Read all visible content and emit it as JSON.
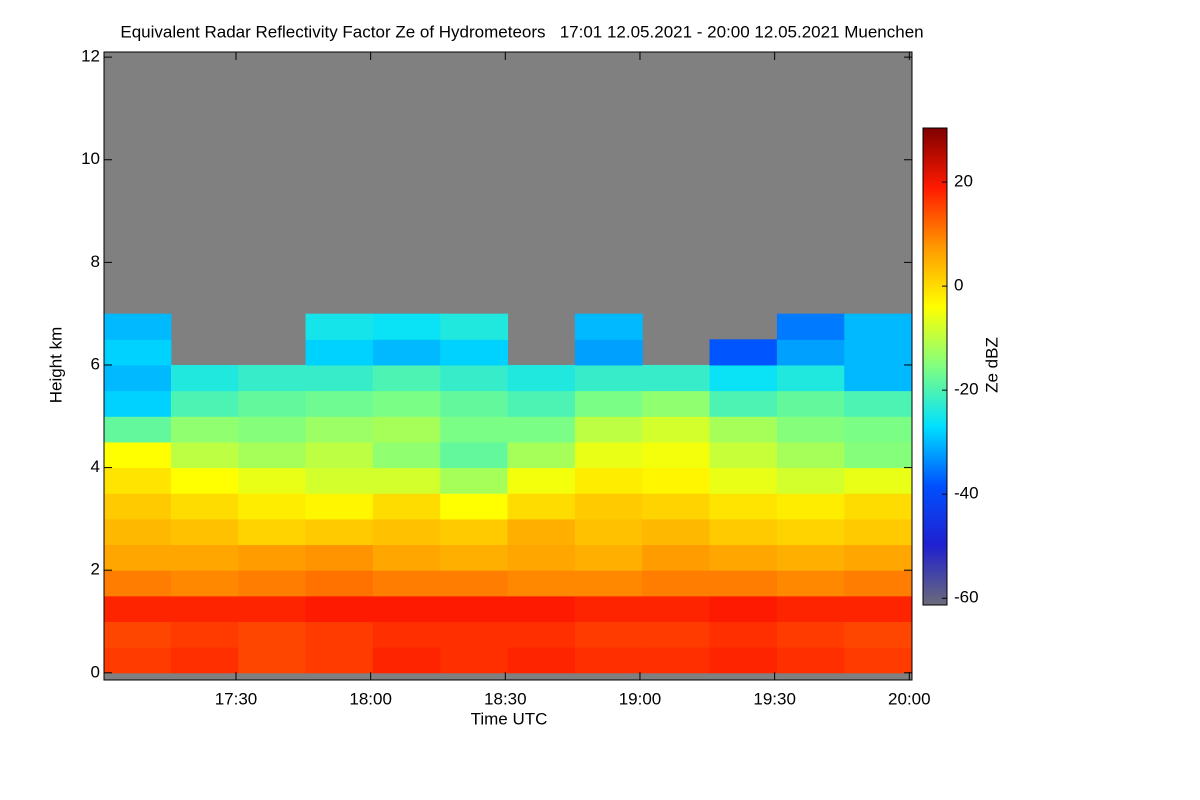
{
  "chart_data": {
    "type": "heatmap",
    "title": "Equivalent Radar Reflectivity Factor Ze of Hydrometeors   17:01 12.05.2021 - 20:00 12.05.2021 Muenchen",
    "x_label": "Time UTC",
    "y_label": "Height km",
    "colorbar_label": "Ze dBZ",
    "x": [
      1028,
      1043,
      1058,
      1073,
      1088,
      1103,
      1118,
      1133,
      1148,
      1163,
      1178,
      1193
    ],
    "y": [
      0.25,
      0.75,
      1.25,
      1.75,
      2.25,
      2.75,
      3.25,
      3.75,
      4.25,
      4.75,
      5.25,
      5.75,
      6.25,
      6.75
    ],
    "z": [
      [
        16,
        17,
        15,
        16,
        18,
        17,
        18,
        17,
        17,
        18,
        17,
        16
      ],
      [
        15,
        16,
        15,
        16,
        17,
        17,
        17,
        16,
        16,
        17,
        16,
        15
      ],
      [
        18,
        18,
        18,
        19,
        19,
        19,
        19,
        18,
        18,
        19,
        18,
        18
      ],
      [
        10,
        9,
        10,
        11,
        10,
        10,
        9,
        9,
        10,
        10,
        9,
        10
      ],
      [
        6,
        6,
        7,
        8,
        6,
        5,
        6,
        5,
        7,
        6,
        5,
        6
      ],
      [
        4,
        3,
        1,
        2,
        3,
        2,
        5,
        3,
        4,
        2,
        1,
        2
      ],
      [
        2,
        0,
        -2,
        -3,
        0,
        -4,
        0,
        2,
        1,
        -1,
        -2,
        0
      ],
      [
        -1,
        -4,
        -6,
        -8,
        -8,
        -12,
        -5,
        -2,
        -3,
        -6,
        -8,
        -6
      ],
      [
        -4,
        -10,
        -12,
        -10,
        -14,
        -18,
        -12,
        -6,
        -5,
        -9,
        -12,
        -15
      ],
      [
        -18,
        -14,
        -15,
        -13,
        -12,
        -16,
        -16,
        -10,
        -8,
        -12,
        -15,
        -16
      ],
      [
        -28,
        -20,
        -18,
        -17,
        -16,
        -18,
        -20,
        -16,
        -14,
        -20,
        -18,
        -20
      ],
      [
        -30,
        -24,
        -22,
        -22,
        -20,
        -22,
        -24,
        -22,
        -22,
        -26,
        -24,
        -30
      ],
      [
        -28,
        null,
        null,
        -28,
        -30,
        -28,
        null,
        -32,
        null,
        -38,
        -32,
        -30
      ],
      [
        -30,
        null,
        null,
        -25,
        -26,
        -24,
        null,
        -30,
        null,
        null,
        -35,
        -30
      ]
    ],
    "xlim": [
      1020.6,
      1200.6
    ],
    "xticks": [
      {
        "value": 1050,
        "label": "17:30"
      },
      {
        "value": 1080,
        "label": "18:00"
      },
      {
        "value": 1110,
        "label": "18:30"
      },
      {
        "value": 1140,
        "label": "19:00"
      },
      {
        "value": 1170,
        "label": "19:30"
      },
      {
        "value": 1200,
        "label": "20:00"
      }
    ],
    "ylim": [
      -0.14,
      12.1
    ],
    "yticks": [
      0,
      2,
      4,
      6,
      8,
      10,
      12
    ],
    "zlim": [
      -61.3,
      30.4
    ],
    "zticks": [
      -60,
      -40,
      -20,
      0,
      20
    ],
    "colorscale": [
      "#6b6b7a",
      "#2020d0",
      "#0050ff",
      "#00e0ff",
      "#80ff80",
      "#ffff00",
      "#ff9900",
      "#ff1a00",
      "#800000"
    ],
    "nodata_color": "#808080"
  }
}
